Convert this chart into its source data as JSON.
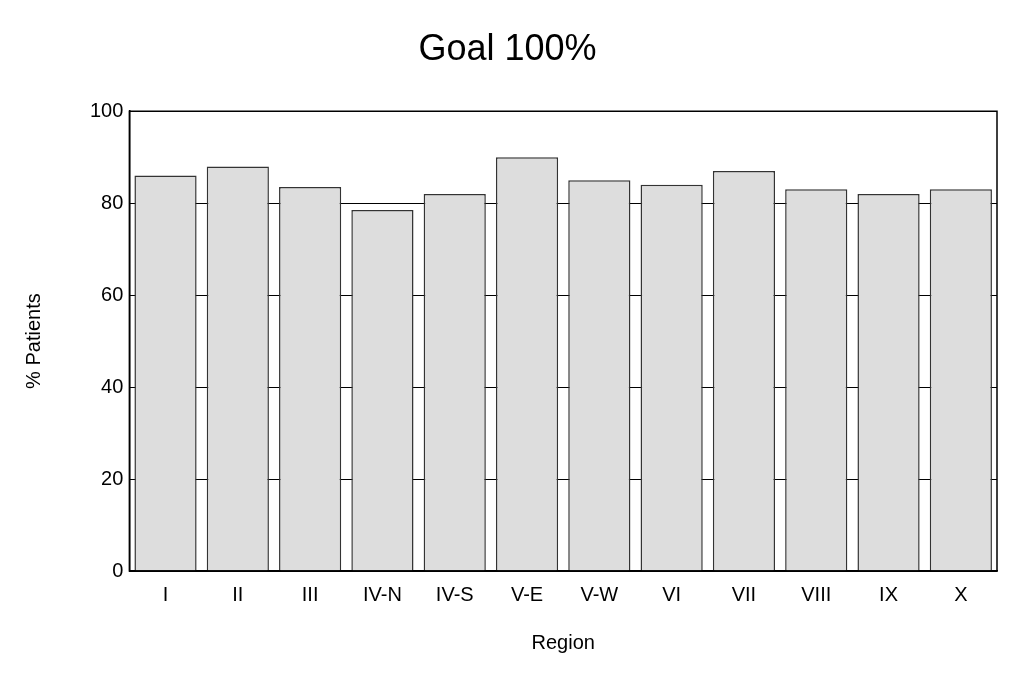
{
  "chart_data": {
    "type": "bar",
    "title": "Goal 100%",
    "xlabel": "Region",
    "ylabel": "% Patients",
    "categories": [
      "I",
      "II",
      "III",
      "IV-N",
      "IV-S",
      "V-E",
      "V-W",
      "VI",
      "VII",
      "VIII",
      "IX",
      "X"
    ],
    "values": [
      86,
      88,
      83.5,
      78.5,
      82,
      90,
      85,
      84,
      87,
      83,
      82,
      83
    ],
    "color": "#dddddd",
    "ylim": [
      0,
      100
    ],
    "yticks": [
      0,
      20,
      40,
      60,
      80,
      100
    ],
    "grid": "y",
    "legend": false
  }
}
